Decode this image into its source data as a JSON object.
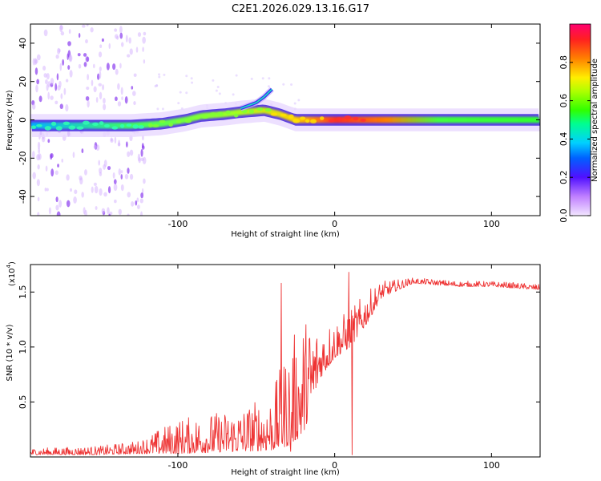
{
  "title": "C2E1.2026.029.13.16.G17",
  "chart_data": [
    {
      "type": "heatmap",
      "name": "spectrogram",
      "xlabel": "Height of straight line (km)",
      "ylabel": "Frequency (Hz)",
      "xlim": [
        -194,
        131
      ],
      "ylim": [
        -50,
        50
      ],
      "xticks": [
        -100,
        0,
        100
      ],
      "xtick_labels": [
        "-100",
        "0",
        "100"
      ],
      "yticks": [
        40,
        20,
        0,
        -20,
        -40
      ],
      "ytick_labels": [
        "40",
        "20",
        "0",
        "-20",
        "-40"
      ],
      "track": [
        {
          "x": -194,
          "y": -3
        },
        {
          "x": -160,
          "y": -3
        },
        {
          "x": -130,
          "y": -3
        },
        {
          "x": -110,
          "y": -2
        },
        {
          "x": -95,
          "y": 0
        },
        {
          "x": -85,
          "y": 2
        },
        {
          "x": -70,
          "y": 3
        },
        {
          "x": -60,
          "y": 4
        },
        {
          "x": -45,
          "y": 5
        },
        {
          "x": -35,
          "y": 3
        },
        {
          "x": -25,
          "y": 0
        },
        {
          "x": -15,
          "y": 0
        },
        {
          "x": 0,
          "y": 0
        },
        {
          "x": 131,
          "y": 0
        }
      ],
      "upper_branch": [
        {
          "x": -60,
          "y": 6
        },
        {
          "x": -50,
          "y": 9
        },
        {
          "x": -45,
          "y": 12
        },
        {
          "x": -40,
          "y": 16
        }
      ]
    },
    {
      "type": "colorbar",
      "name": "amplitude-scale",
      "label": "Normalized spectral amplitude",
      "range": [
        0,
        1
      ],
      "ticks": [
        0.0,
        0.2,
        0.4,
        0.6,
        0.8
      ],
      "tick_labels": [
        "0.0",
        "0.2",
        "0.4",
        "0.6",
        "0.8"
      ]
    },
    {
      "type": "line",
      "name": "snr",
      "xlabel": "Height of straight line (km)",
      "ylabel": "SNR (10 * v/v)",
      "multiplier_label": "(x10",
      "multiplier_exp": "4",
      "multiplier_close": ")",
      "xlim": [
        -194,
        131
      ],
      "ylim": [
        0,
        1.75
      ],
      "xticks": [
        -100,
        0,
        100
      ],
      "xtick_labels": [
        "-100",
        "0",
        "100"
      ],
      "yticks": [
        0.5,
        1.0,
        1.5
      ],
      "ytick_labels": [
        "0.5",
        "1.0",
        "1.5"
      ],
      "color": "#ee3333",
      "envelope": [
        {
          "x": -194,
          "lo": 0.02,
          "hi": 0.08
        },
        {
          "x": -150,
          "lo": 0.02,
          "hi": 0.1
        },
        {
          "x": -125,
          "lo": 0.03,
          "hi": 0.15
        },
        {
          "x": -100,
          "lo": 0.03,
          "hi": 0.35
        },
        {
          "x": -80,
          "lo": 0.04,
          "hi": 0.4
        },
        {
          "x": -60,
          "lo": 0.05,
          "hi": 0.45
        },
        {
          "x": -40,
          "lo": 0.06,
          "hi": 0.6
        },
        {
          "x": -30,
          "lo": 0.1,
          "hi": 1.0
        },
        {
          "x": -20,
          "lo": 0.2,
          "hi": 1.3
        },
        {
          "x": -10,
          "lo": 0.7,
          "hi": 1.2
        },
        {
          "x": 0,
          "lo": 0.9,
          "hi": 1.25
        },
        {
          "x": 10,
          "lo": 1.0,
          "hi": 1.35
        },
        {
          "x": 20,
          "lo": 1.2,
          "hi": 1.5
        },
        {
          "x": 30,
          "lo": 1.45,
          "hi": 1.6
        },
        {
          "x": 50,
          "lo": 1.58,
          "hi": 1.63
        },
        {
          "x": 80,
          "lo": 1.55,
          "hi": 1.6
        },
        {
          "x": 100,
          "lo": 1.55,
          "hi": 1.6
        },
        {
          "x": 131,
          "lo": 1.52,
          "hi": 1.57
        }
      ],
      "spikes": [
        {
          "x": -34,
          "y": 1.58
        },
        {
          "x": -28,
          "y": 0.05
        },
        {
          "x": 9,
          "y": 1.68
        },
        {
          "x": 11,
          "y": 0.02
        }
      ]
    }
  ]
}
